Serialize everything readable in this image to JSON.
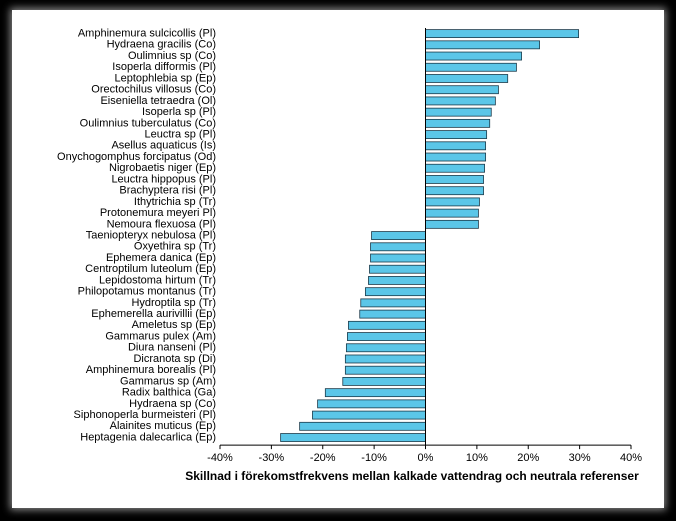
{
  "chart_data": {
    "type": "hbar",
    "xlabel": "Skillnad i förekomstfrekvens mellan kalkade vattendrag och neutrala referenser",
    "categories": [
      "Amphinemura sulcicollis (Pl)",
      "Hydraena gracilis (Co)",
      "Oulimnius sp (Co)",
      "Isoperla difformis (Pl)",
      "Leptophlebia sp (Ep)",
      "Orectochilus villosus (Co)",
      "Eiseniella tetraedra (Ol)",
      "Isoperla sp (Pl)",
      "Oulimnius tuberculatus (Co)",
      "Leuctra sp (Pl)",
      "Asellus aquaticus (Is)",
      "Onychogomphus forcipatus (Od)",
      "Nigrobaetis niger (Ep)",
      "Leuctra hippopus (Pl)",
      "Brachyptera risi (Pl)",
      "Ithytrichia sp (Tr)",
      "Protonemura meyeri Pl)",
      "Nemoura flexuosa (Pl)",
      "Taeniopteryx nebulosa (Pl)",
      "Oxyethira sp (Tr)",
      "Ephemera danica (Ep)",
      "Centroptilum luteolum (Ep)",
      "Lepidostoma hirtum (Tr)",
      "Philopotamus montanus (Tr)",
      "Hydroptila sp (Tr)",
      "Ephemerella aurivillii (Ep)",
      "Ameletus sp (Ep)",
      "Gammarus pulex (Am)",
      "Diura nanseni (Pl)",
      "Dicranota sp (Di)",
      "Amphinemura borealis (Pl)",
      "Gammarus sp (Am)",
      "Radix balthica (Ga)",
      "Hydraena sp (Co)",
      "Siphonoperla burmeisteri (Pl)",
      "Alainites muticus (Ep)",
      "Heptagenia dalecarlica (Ep)"
    ],
    "values": [
      29.8,
      22.2,
      18.7,
      17.7,
      16,
      14.2,
      13.6,
      12.8,
      12.5,
      11.9,
      11.7,
      11.7,
      11.5,
      11.3,
      11.3,
      10.5,
      10.3,
      10.3,
      -10.5,
      -10.7,
      -10.7,
      -10.9,
      -11.1,
      -11.7,
      -12.6,
      -12.8,
      -15,
      -15.2,
      -15.4,
      -15.6,
      -15.6,
      -16.1,
      -19.5,
      -21,
      -22,
      -24.5,
      -28.2
    ],
    "color": "#5bc6e8",
    "xlim": [
      -40,
      40
    ],
    "xticks": [
      {
        "value": -40,
        "label": "-40%"
      },
      {
        "value": -30,
        "label": "-30%"
      },
      {
        "value": -20,
        "label": "-20%"
      },
      {
        "value": -10,
        "label": "-10%"
      },
      {
        "value": 0,
        "label": "0%"
      },
      {
        "value": 10,
        "label": "10%"
      },
      {
        "value": 20,
        "label": "20%"
      },
      {
        "value": 30,
        "label": "30%"
      },
      {
        "value": 40,
        "label": "40%"
      }
    ]
  }
}
